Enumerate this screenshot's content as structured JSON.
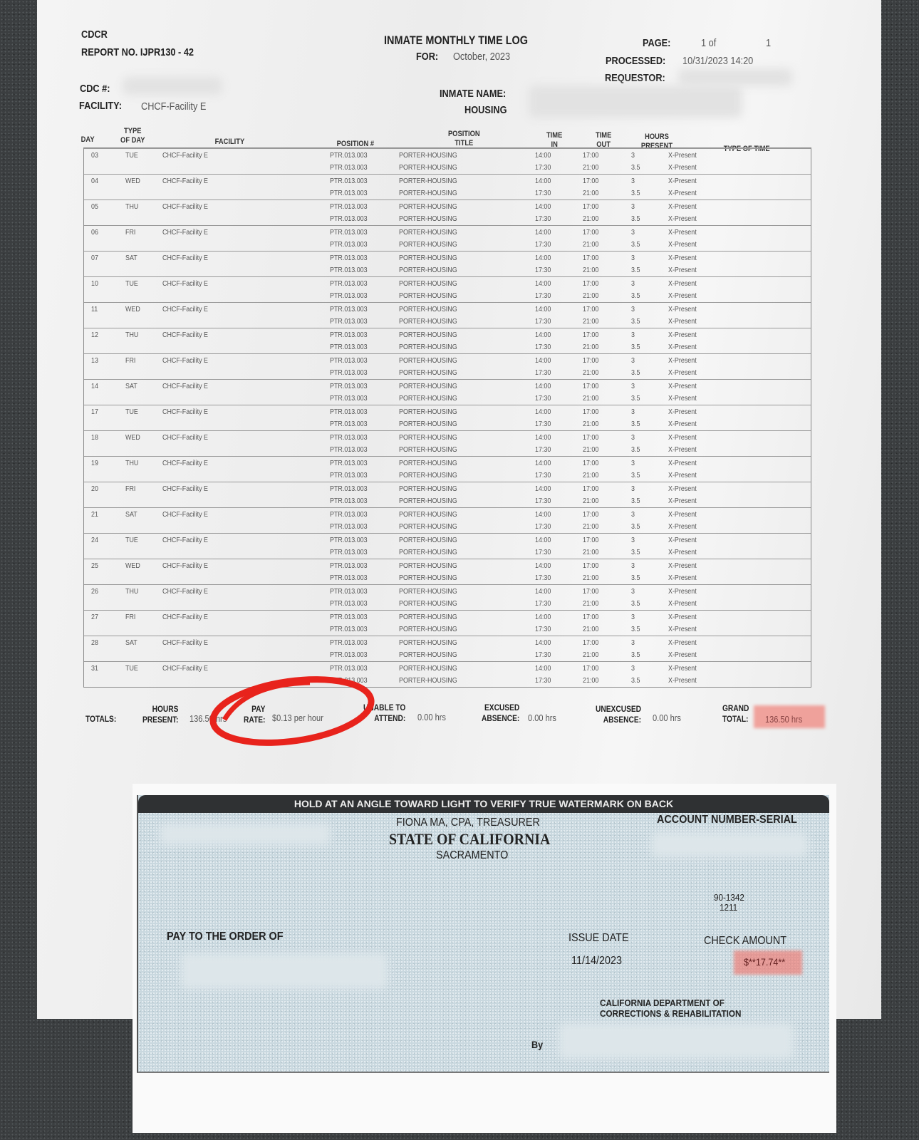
{
  "header": {
    "agency": "CDCR",
    "report_no": "REPORT NO. IJPR130 - 42",
    "title": "INMATE MONTHLY TIME LOG",
    "for_label": "FOR:",
    "for_value": "October, 2023",
    "page_label": "PAGE:",
    "page_value": "1 of",
    "page_total": "1",
    "processed_label": "PROCESSED:",
    "processed_value": "10/31/2023 14:20",
    "requestor_label": "REQUESTOR:",
    "cdc_label": "CDC #:",
    "facility_label": "FACILITY:",
    "facility_value": "CHCF-Facility E",
    "inmate_name_label": "INMATE NAME:",
    "housing_label": "HOUSING"
  },
  "columns": {
    "day": "DAY",
    "type_of_day": "TYPE\nOF DAY",
    "facility": "FACILITY",
    "position_no": "POSITION #",
    "position_title": "POSITION\nTITLE",
    "time_in": "TIME\nIN",
    "time_out": "TIME\nOUT",
    "hours_present": "HOURS\nPRESENT",
    "type_of_time": "TYPE OF TIME"
  },
  "shift_rows": [
    {
      "position_no": "PTR.013.003",
      "title": "PORTER-HOUSING",
      "in": "14:00",
      "out": "17:00",
      "hours": "3",
      "type": "X-Present"
    },
    {
      "position_no": "PTR.013.003",
      "title": "PORTER-HOUSING",
      "in": "17:30",
      "out": "21:00",
      "hours": "3.5",
      "type": "X-Present"
    }
  ],
  "days": [
    {
      "day": "03",
      "dow": "TUE",
      "facility": "CHCF-Facility E"
    },
    {
      "day": "04",
      "dow": "WED",
      "facility": "CHCF-Facility E"
    },
    {
      "day": "05",
      "dow": "THU",
      "facility": "CHCF-Facility E"
    },
    {
      "day": "06",
      "dow": "FRI",
      "facility": "CHCF-Facility E"
    },
    {
      "day": "07",
      "dow": "SAT",
      "facility": "CHCF-Facility E"
    },
    {
      "day": "10",
      "dow": "TUE",
      "facility": "CHCF-Facility E"
    },
    {
      "day": "11",
      "dow": "WED",
      "facility": "CHCF-Facility E"
    },
    {
      "day": "12",
      "dow": "THU",
      "facility": "CHCF-Facility E"
    },
    {
      "day": "13",
      "dow": "FRI",
      "facility": "CHCF-Facility E"
    },
    {
      "day": "14",
      "dow": "SAT",
      "facility": "CHCF-Facility E"
    },
    {
      "day": "17",
      "dow": "TUE",
      "facility": "CHCF-Facility E"
    },
    {
      "day": "18",
      "dow": "WED",
      "facility": "CHCF-Facility E"
    },
    {
      "day": "19",
      "dow": "THU",
      "facility": "CHCF-Facility E"
    },
    {
      "day": "20",
      "dow": "FRI",
      "facility": "CHCF-Facility E"
    },
    {
      "day": "21",
      "dow": "SAT",
      "facility": "CHCF-Facility E"
    },
    {
      "day": "24",
      "dow": "TUE",
      "facility": "CHCF-Facility E"
    },
    {
      "day": "25",
      "dow": "WED",
      "facility": "CHCF-Facility E"
    },
    {
      "day": "26",
      "dow": "THU",
      "facility": "CHCF-Facility E"
    },
    {
      "day": "27",
      "dow": "FRI",
      "facility": "CHCF-Facility E"
    },
    {
      "day": "28",
      "dow": "SAT",
      "facility": "CHCF-Facility E"
    },
    {
      "day": "31",
      "dow": "TUE",
      "facility": "CHCF-Facility E"
    }
  ],
  "totals": {
    "label": "TOTALS:",
    "hours_present_label": "HOURS\nPRESENT:",
    "hours_present_value": "136.50 hrs",
    "pay_rate_label": "PAY\nRATE:",
    "pay_rate_value": "$0.13 per hour",
    "unable_label": "UNABLE TO\nATTEND:",
    "unable_value": "0.00 hrs",
    "excused_label": "EXCUSED\nABSENCE:",
    "excused_value": "0.00 hrs",
    "unexcused_label": "UNEXCUSED\nABSENCE:",
    "unexcused_value": "0.00 hrs",
    "grand_label": "GRAND\nTOTAL:",
    "grand_value": "136.50 hrs"
  },
  "check": {
    "banner": "HOLD AT AN ANGLE TOWARD LIGHT TO VERIFY TRUE WATERMARK ON BACK",
    "treasurer": "FIONA MA, CPA, TREASURER",
    "state": "STATE OF CALIFORNIA",
    "city": "SACRAMENTO",
    "account_label": "ACCOUNT NUMBER-SERIAL",
    "routing_1": "90-1342",
    "routing_2": "1211",
    "pay_to_label": "PAY TO THE ORDER OF",
    "issue_date_label": "ISSUE DATE",
    "issue_date": "11/14/2023",
    "amount_label": "CHECK AMOUNT",
    "amount": "$**17.74**",
    "department": "CALIFORNIA DEPARTMENT OF\nCORRECTIONS & REHABILITATION",
    "by_label": "By"
  },
  "colors": {
    "annotation_circle": "#e8231c",
    "highlight": "#f0786e",
    "check_face": "#c9d8df"
  }
}
